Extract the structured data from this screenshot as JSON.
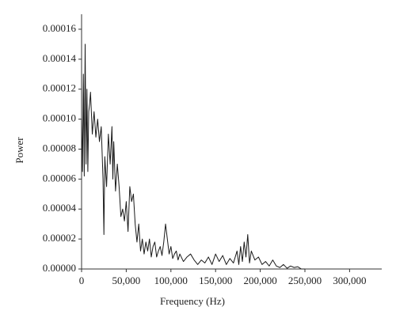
{
  "chart_data": {
    "type": "line",
    "x_label": "Frequency (Hz)",
    "y_label": "Power",
    "color": "#1a1a1a",
    "xlim": [
      0,
      336000
    ],
    "ylim": [
      0,
      0.00017
    ],
    "xticks": [
      0,
      {
        "value": 50000,
        "label": "50,000"
      },
      {
        "value": 100000,
        "label": "100,000"
      },
      {
        "value": 150000,
        "label": "150,000"
      },
      {
        "value": 200000,
        "label": "200,000"
      },
      {
        "value": 250000,
        "label": "250,000"
      },
      {
        "value": 300000,
        "label": "300,000"
      }
    ],
    "yticks": [
      {
        "value": 0,
        "label": "0.00000"
      },
      {
        "value": 2e-05,
        "label": "0.00002"
      },
      {
        "value": 4e-05,
        "label": "0.00004"
      },
      {
        "value": 6e-05,
        "label": "0.00006"
      },
      {
        "value": 8e-05,
        "label": "0.00008"
      },
      {
        "value": 0.0001,
        "label": "0.00010"
      },
      {
        "value": 0.00012,
        "label": "0.00012"
      },
      {
        "value": 0.00014,
        "label": "0.00014"
      },
      {
        "value": 0.00016,
        "label": "0.00016"
      }
    ],
    "grid": false,
    "x": [
      0,
      1000,
      2000,
      3000,
      4000,
      5000,
      6000,
      7000,
      8000,
      9000,
      10000,
      12000,
      14000,
      16000,
      18000,
      20000,
      22000,
      24000,
      25000,
      26000,
      28000,
      30000,
      32000,
      34000,
      35000,
      36000,
      38000,
      40000,
      42000,
      44000,
      46000,
      48000,
      50000,
      52000,
      54000,
      56000,
      58000,
      60000,
      62000,
      64000,
      66000,
      68000,
      70000,
      72000,
      74000,
      76000,
      78000,
      80000,
      82000,
      84000,
      86000,
      88000,
      90000,
      92000,
      94000,
      96000,
      98000,
      100000,
      102000,
      104000,
      106000,
      108000,
      110000,
      114000,
      118000,
      122000,
      126000,
      130000,
      134000,
      138000,
      142000,
      146000,
      150000,
      154000,
      158000,
      162000,
      166000,
      170000,
      174000,
      176000,
      178000,
      180000,
      182000,
      184000,
      186000,
      188000,
      190000,
      194000,
      198000,
      202000,
      206000,
      210000,
      214000,
      218000,
      222000,
      226000,
      230000,
      234000,
      238000,
      242000,
      246000,
      250000
    ],
    "values": [
      0.0001,
      6.5e-05,
      0.00013,
      6.2e-05,
      0.00015,
      7e-05,
      0.00012,
      6.5e-05,
      0.000105,
      0.00011,
      0.000118,
      9e-05,
      0.000105,
      8.8e-05,
      0.0001,
      8.5e-05,
      9.5e-05,
      6e-05,
      2.3e-05,
      7.5e-05,
      5.5e-05,
      9e-05,
      7e-05,
      9.5e-05,
      6e-05,
      8.5e-05,
      5.2e-05,
      7e-05,
      5.5e-05,
      3.5e-05,
      4e-05,
      3.2e-05,
      4.5e-05,
      2.5e-05,
      5.5e-05,
      4.5e-05,
      5e-05,
      3e-05,
      1.8e-05,
      3e-05,
      1.2e-05,
      2e-05,
      1e-05,
      1.8e-05,
      1.2e-05,
      2e-05,
      8e-06,
      1.5e-05,
      1.8e-05,
      8e-06,
      1.2e-05,
      1.5e-05,
      9e-06,
      1.8e-05,
      3e-05,
      2e-05,
      1e-05,
      1.5e-05,
      7e-06,
      1e-05,
      1.2e-05,
      6e-06,
      1e-05,
      5e-06,
      8e-06,
      1e-05,
      6e-06,
      3e-06,
      6e-06,
      4e-06,
      8e-06,
      3e-06,
      1e-05,
      5e-06,
      9e-06,
      3e-06,
      7e-06,
      4e-06,
      1.2e-05,
      3e-06,
      1.5e-05,
      5e-06,
      1.8e-05,
      8e-06,
      2.3e-05,
      4e-06,
      1.2e-05,
      6e-06,
      8e-06,
      3e-06,
      5e-06,
      2e-06,
      6e-06,
      2e-06,
      1e-06,
      3e-06,
      5e-07,
      2e-06,
      1e-06,
      1.5e-06,
      0,
      0
    ]
  }
}
